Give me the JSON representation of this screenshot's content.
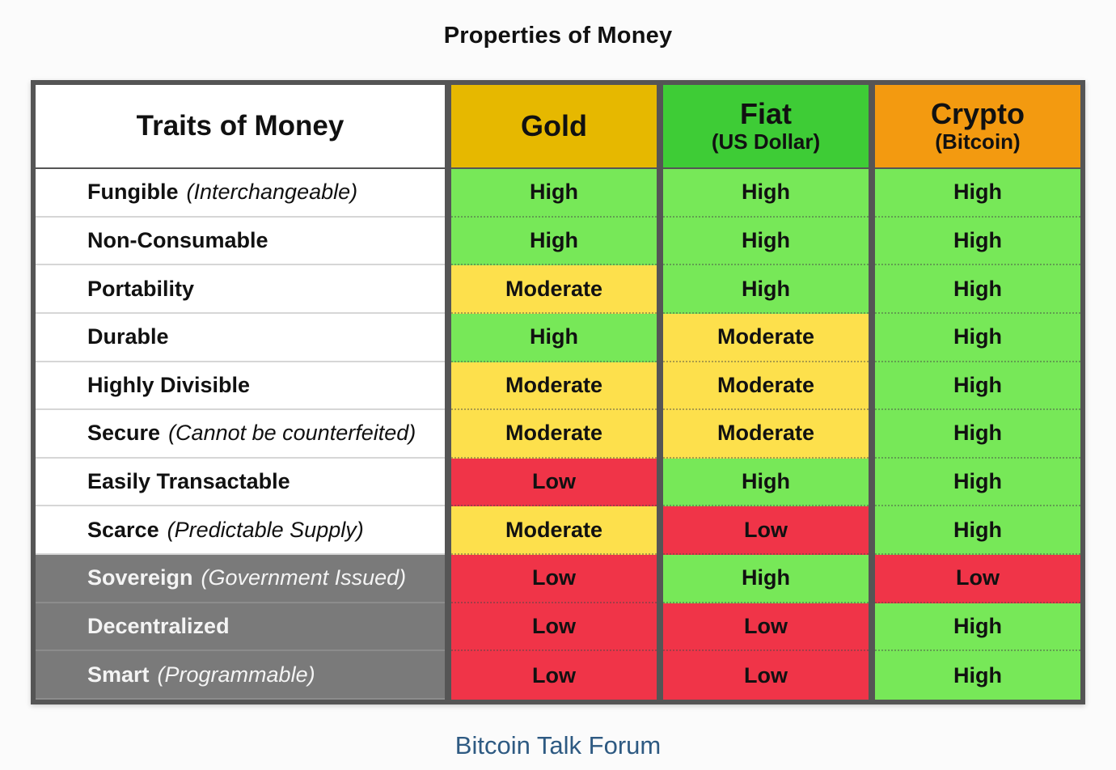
{
  "title": "Properties of Money",
  "caption": "Bitcoin Talk Forum",
  "colors": {
    "gold_header": "#e6b800",
    "fiat_header": "#3ecc36",
    "crypto_header": "#f39a10",
    "high": "#77e858",
    "moderate": "#fde04c",
    "low": "#f03448",
    "caption": "#2e5a82"
  },
  "table": {
    "headers": {
      "traits": "Traits of Money",
      "gold": "Gold",
      "fiat": "Fiat",
      "fiat_sub": "(US Dollar)",
      "crypto": "Crypto",
      "crypto_sub": "(Bitcoin)"
    },
    "rows": [
      {
        "trait": "Fungible",
        "note": "(Interchangeable)",
        "gold": "High",
        "fiat": "High",
        "crypto": "High"
      },
      {
        "trait": "Non-Consumable",
        "note": "",
        "gold": "High",
        "fiat": "High",
        "crypto": "High"
      },
      {
        "trait": "Portability",
        "note": "",
        "gold": "Moderate",
        "fiat": "High",
        "crypto": "High"
      },
      {
        "trait": "Durable",
        "note": "",
        "gold": "High",
        "fiat": "Moderate",
        "crypto": "High"
      },
      {
        "trait": "Highly Divisible",
        "note": "",
        "gold": "Moderate",
        "fiat": "Moderate",
        "crypto": "High"
      },
      {
        "trait": "Secure",
        "note": "(Cannot be counterfeited)",
        "gold": "Moderate",
        "fiat": "Moderate",
        "crypto": "High"
      },
      {
        "trait": "Easily Transactable",
        "note": "",
        "gold": "Low",
        "fiat": "High",
        "crypto": "High"
      },
      {
        "trait": "Scarce",
        "note": "(Predictable Supply)",
        "gold": "Moderate",
        "fiat": "Low",
        "crypto": "High"
      },
      {
        "trait": "Sovereign",
        "note": "(Government Issued)",
        "gold": "Low",
        "fiat": "High",
        "crypto": "Low"
      },
      {
        "trait": "Decentralized",
        "note": "",
        "gold": "Low",
        "fiat": "Low",
        "crypto": "High"
      },
      {
        "trait": "Smart",
        "note": "(Programmable)",
        "gold": "Low",
        "fiat": "Low",
        "crypto": "High"
      }
    ]
  }
}
